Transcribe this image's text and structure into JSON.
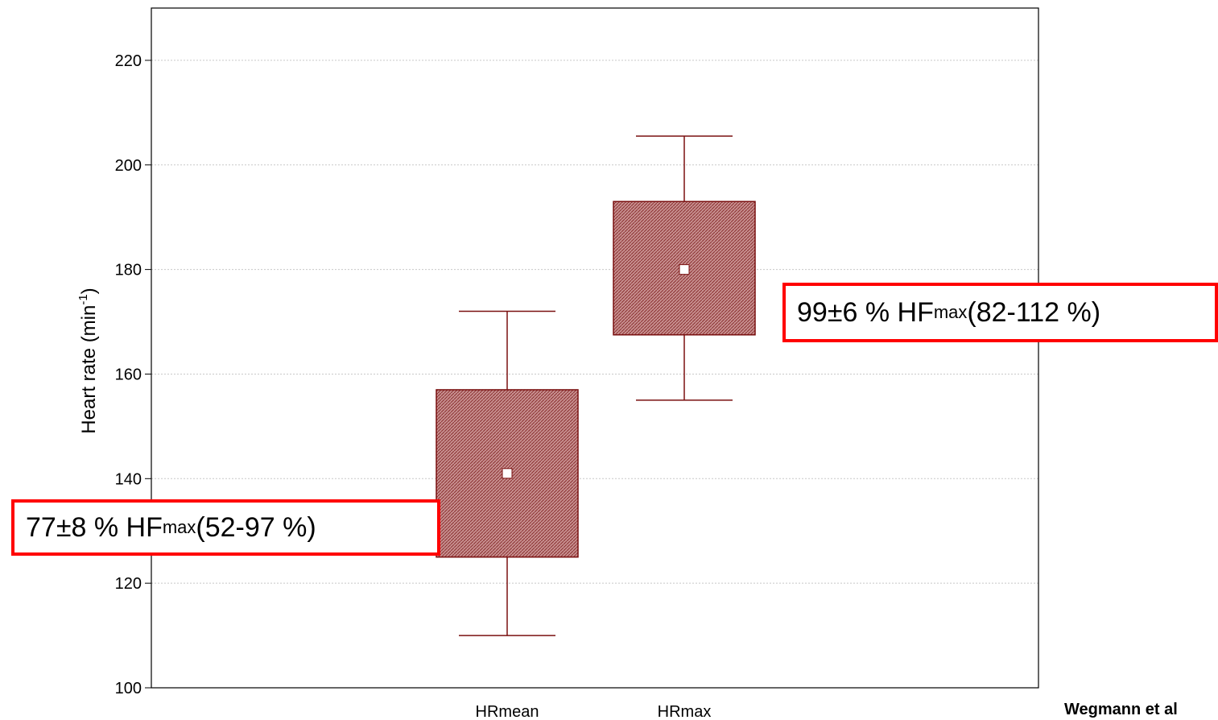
{
  "chart_data": {
    "type": "box",
    "ylabel_main": "Heart rate (min",
    "ylabel_sup": "-1",
    "ylabel_tail": ")",
    "ylim": [
      100,
      230
    ],
    "yticks": [
      100,
      120,
      140,
      160,
      180,
      200,
      220
    ],
    "grid": true,
    "categories": [
      "HRmean",
      "HRmax"
    ],
    "boxes": [
      {
        "category": "HRmean",
        "center": 141,
        "box_low": 125,
        "box_high": 157,
        "whisker_low": 110,
        "whisker_high": 172
      },
      {
        "category": "HRmax",
        "center": 180,
        "box_low": 167.5,
        "box_high": 193,
        "whisker_low": 155,
        "whisker_high": 205.5
      }
    ],
    "colors": {
      "box_fill": "#b87070",
      "box_stroke": "#7a1010",
      "grid": "#c8c8c8",
      "annotation_border": "#ff0000"
    },
    "annotations": [
      {
        "main": "77±8 % HF",
        "sub": "max",
        "tail": " (52-97 %)"
      },
      {
        "main": "99±6 % HF",
        "sub": "max",
        "tail": " (82-112 %)"
      }
    ]
  },
  "footer": {
    "credit": "Wegmann et al"
  }
}
